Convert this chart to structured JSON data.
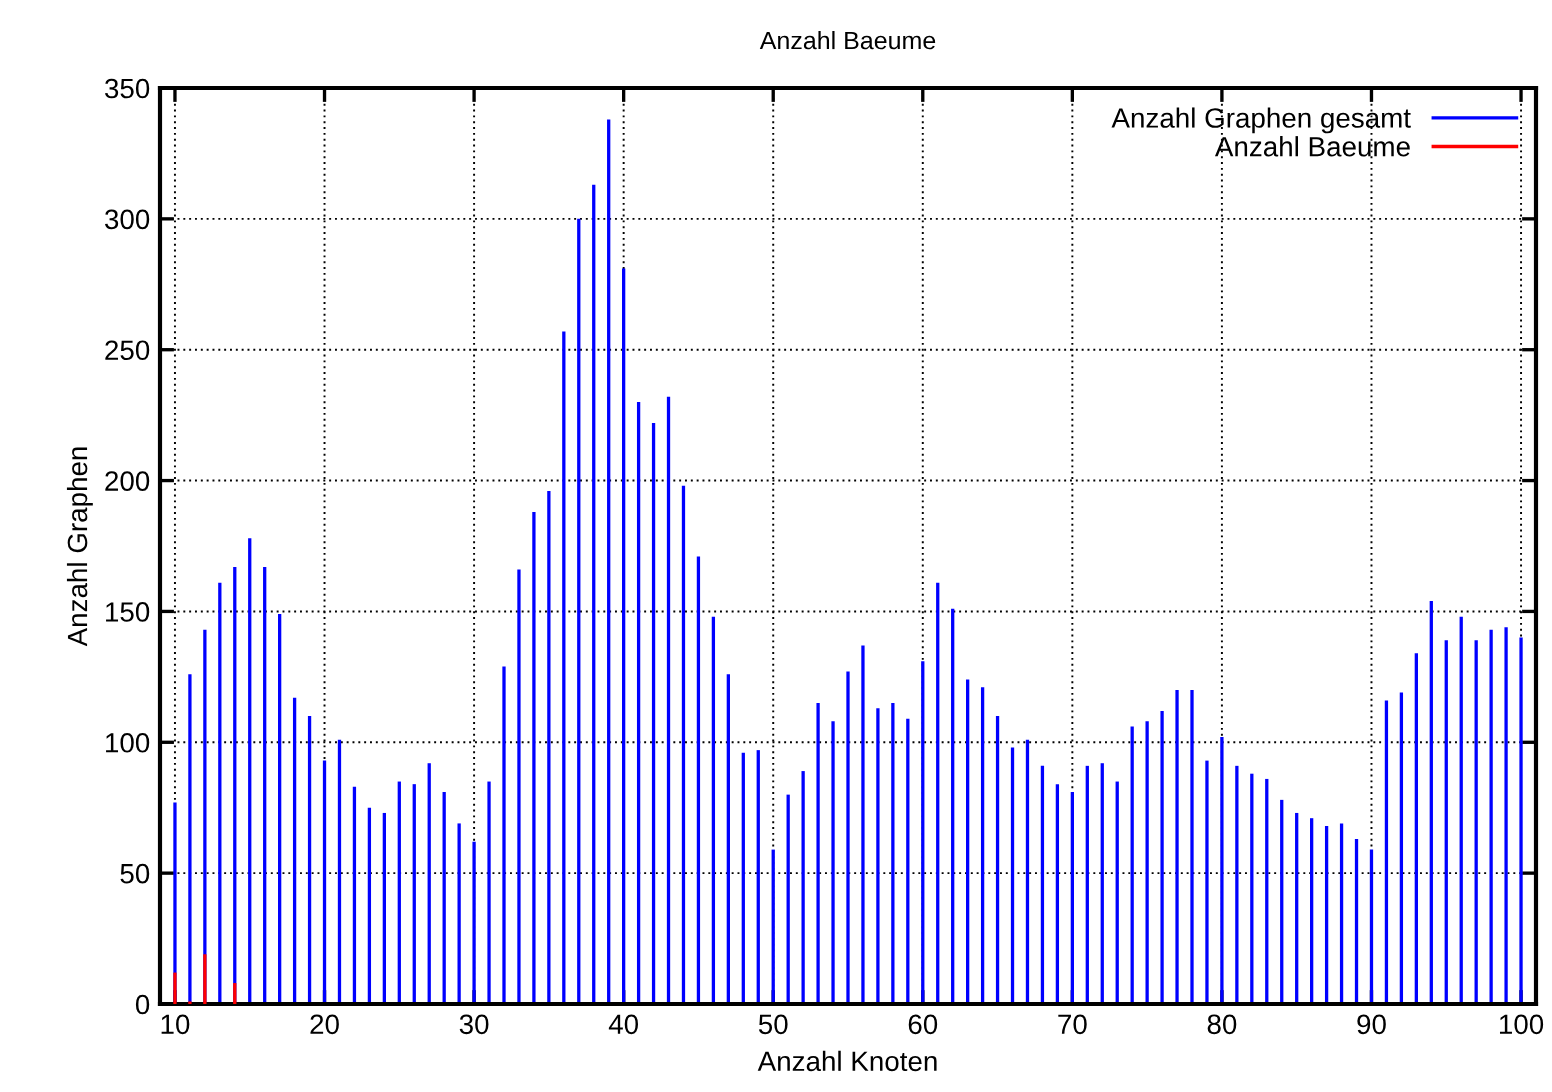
{
  "chart_data": {
    "type": "bar",
    "title": "Anzahl Baeume",
    "xlabel": "Anzahl Knoten",
    "ylabel": "Anzahl Graphen",
    "x": [
      10,
      11,
      12,
      13,
      14,
      15,
      16,
      17,
      18,
      19,
      20,
      21,
      22,
      23,
      24,
      25,
      26,
      27,
      28,
      29,
      30,
      31,
      32,
      33,
      34,
      35,
      36,
      37,
      38,
      39,
      40,
      41,
      42,
      43,
      44,
      45,
      46,
      47,
      48,
      49,
      50,
      51,
      52,
      53,
      54,
      55,
      56,
      57,
      58,
      59,
      60,
      61,
      62,
      63,
      64,
      65,
      66,
      67,
      68,
      69,
      70,
      71,
      72,
      73,
      74,
      75,
      76,
      77,
      78,
      79,
      80,
      81,
      82,
      83,
      84,
      85,
      86,
      87,
      88,
      89,
      90,
      91,
      92,
      93,
      94,
      95,
      96,
      97,
      98,
      99,
      100
    ],
    "series": [
      {
        "name": "Anzahl Graphen gesamt",
        "color": "#0000ff",
        "values": [
          77,
          126,
          143,
          161,
          167,
          178,
          167,
          149,
          117,
          110,
          93,
          101,
          83,
          75,
          73,
          85,
          84,
          92,
          81,
          69,
          62,
          85,
          129,
          166,
          188,
          196,
          257,
          300,
          313,
          338,
          281,
          230,
          222,
          232,
          198,
          171,
          148,
          126,
          96,
          97,
          59,
          80,
          89,
          115,
          108,
          127,
          137,
          113,
          115,
          109,
          131,
          161,
          151,
          124,
          121,
          110,
          98,
          101,
          91,
          84,
          81,
          91,
          92,
          85,
          106,
          108,
          112,
          120,
          120,
          93,
          102,
          91,
          88,
          86,
          78,
          73,
          71,
          68,
          69,
          63,
          59,
          116,
          119,
          134,
          154,
          139,
          148,
          139,
          143,
          144,
          140
        ]
      },
      {
        "name": "Anzahl Baeume",
        "color": "#ff0000",
        "x": [
          10,
          11,
          12,
          14
        ],
        "values": [
          12,
          1,
          19,
          8
        ]
      }
    ],
    "xlim": [
      9,
      101
    ],
    "ylim": [
      0,
      350
    ],
    "xticks": [
      10,
      20,
      30,
      40,
      50,
      60,
      70,
      80,
      90,
      100
    ],
    "yticks": [
      0,
      50,
      100,
      150,
      200,
      250,
      300,
      350
    ],
    "grid": true,
    "legend": "top right"
  }
}
